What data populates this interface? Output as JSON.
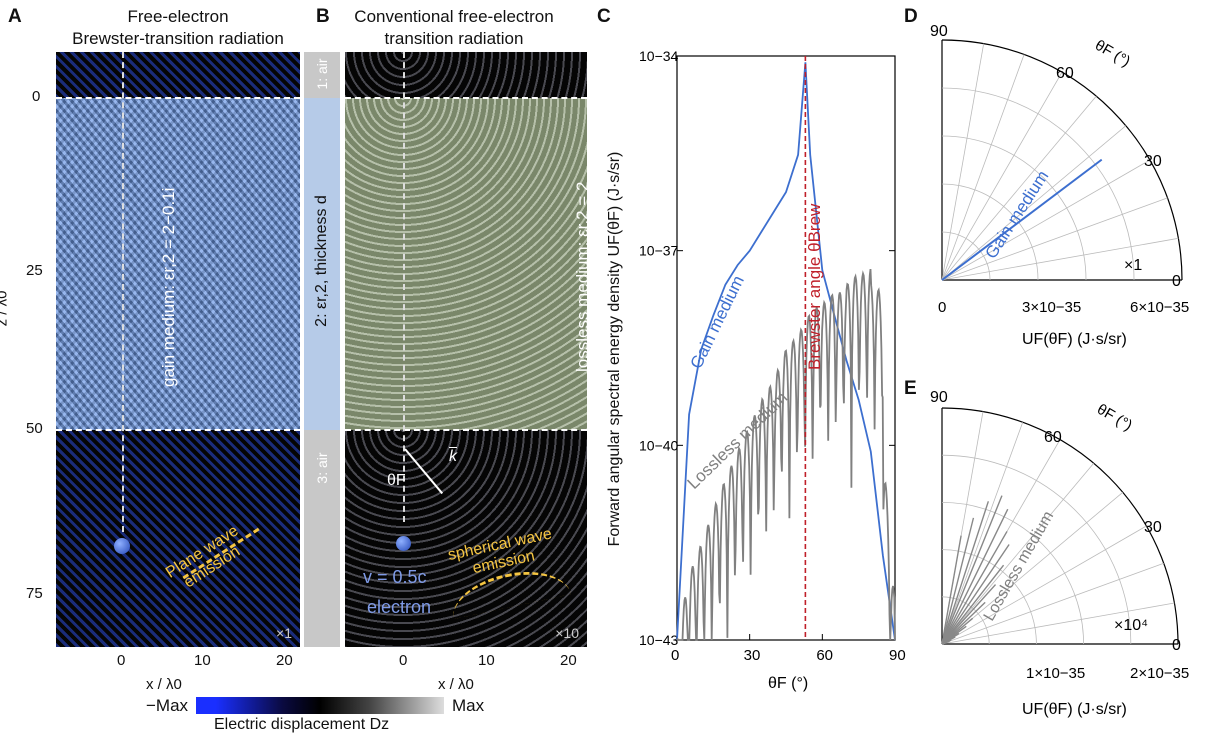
{
  "panelA": {
    "letter": "A",
    "title_line1": "Free-electron",
    "title_line2": "Brewster-transition radiation",
    "medium_label": "gain medium: εr,2 = 2−0.1i",
    "emission_line1": "Plane wave",
    "emission_line2": "emission",
    "scale": "×1",
    "yticks": [
      "0",
      "25",
      "50",
      "75"
    ],
    "xticks": [
      "0",
      "10",
      "20"
    ],
    "ylabel": "z / λ0",
    "xlabel": "x / λ0"
  },
  "layers": {
    "air1": "1: air",
    "medium": "2: εr,2, thickness d",
    "air3": "3: air"
  },
  "panelB": {
    "letter": "B",
    "title_line1": "Conventional free-electron",
    "title_line2": "transition radiation",
    "medium_label": "lossless medium: εr,2 = 2",
    "emission_line1": "spherical wave",
    "emission_line2": "emission",
    "velocity": "v = 0.5c",
    "particle": "electron",
    "theta": "θF",
    "k": "k",
    "scale": "×10",
    "xticks": [
      "0",
      "10",
      "20"
    ],
    "xlabel": "x / λ0"
  },
  "colorbar": {
    "min": "−Max",
    "max": "Max",
    "label": "Electric displacement Dz"
  },
  "panelC": {
    "letter": "C",
    "ylabel": "Forward angular spectral energy density UF(θF) (J·s/sr)",
    "xlabel": "θF (°)",
    "yticks": [
      "10−34",
      "10−37",
      "10−40",
      "10−43"
    ],
    "xticks": [
      "0",
      "30",
      "60",
      "90"
    ],
    "series_gain": "Gain medium",
    "series_lossless": "Lossless medium",
    "brewster_label": "Brewster angle θBrew"
  },
  "panelD": {
    "letter": "D",
    "angle_label": "θF (°)",
    "ticks_angle": [
      "90",
      "60",
      "30",
      "0"
    ],
    "ticks_radial": [
      "0",
      "3×10−35",
      "6×10−35"
    ],
    "series": "Gain medium",
    "scale": "×1",
    "xlabel": "UF(θF) (J·s/sr)"
  },
  "panelE": {
    "letter": "E",
    "angle_label": "θF (°)",
    "ticks_angle": [
      "90",
      "60",
      "30",
      "0"
    ],
    "ticks_radial": [
      "1×10−35",
      "2×10−35"
    ],
    "series": "Lossless medium",
    "scale": "×10⁴",
    "xlabel": "UF(θF) (J·s/sr)"
  },
  "chart_data": {
    "type": "line",
    "x": [
      0,
      5,
      10,
      15,
      20,
      25,
      30,
      35,
      40,
      45,
      50,
      53,
      55,
      60,
      65,
      70,
      75,
      80,
      85,
      90
    ],
    "series": [
      {
        "name": "Gain medium",
        "color": "#3d6fcf",
        "values": [
          1e-43,
          3e-40,
          3e-39,
          1e-38,
          3e-38,
          6e-38,
          1e-37,
          2e-37,
          4e-37,
          8e-37,
          3e-36,
          8e-35,
          3e-36,
          5e-38,
          1e-38,
          2e-39,
          5e-40,
          8e-41,
          2e-42,
          1e-43
        ]
      },
      {
        "name": "Lossless medium",
        "color": "#808080",
        "values": [
          1e-43,
          1e-42,
          3e-42,
          1e-41,
          3e-41,
          8e-41,
          2e-40,
          5e-40,
          1e-39,
          3e-39,
          5e-39,
          8e-39,
          1e-38,
          1.5e-38,
          2e-38,
          3e-38,
          4e-38,
          3e-38,
          1e-40,
          1e-43
        ]
      }
    ],
    "ylim": [
      1e-43,
      1e-34
    ],
    "xlim": [
      0,
      90
    ],
    "yscale": "log",
    "vline": 53
  }
}
